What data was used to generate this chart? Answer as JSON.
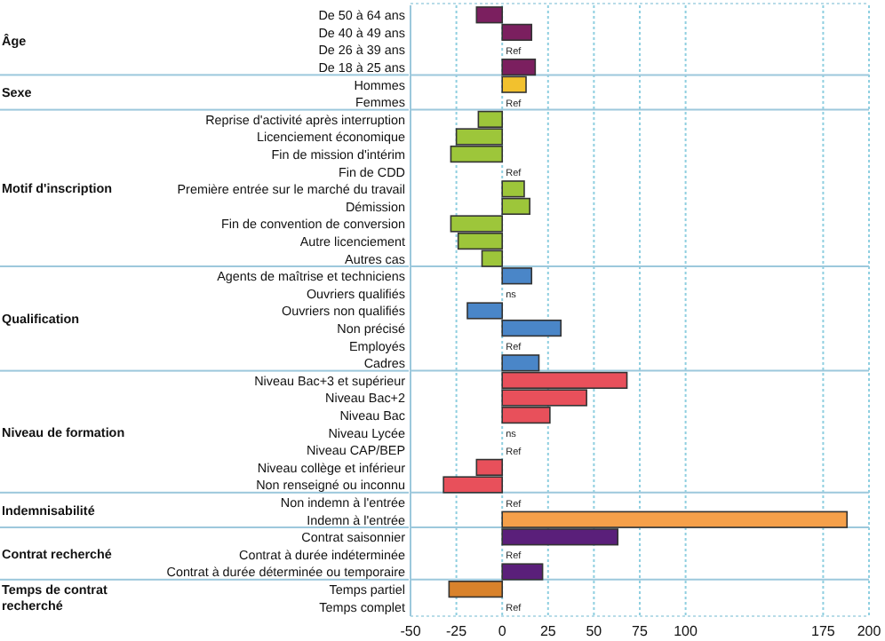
{
  "chart_data": {
    "type": "bar",
    "orientation": "horizontal",
    "categories": [
      "De 50 à 64 ans",
      "De 40 à 49 ans",
      "De 26 à 39 ans",
      "De 18 à 25 ans",
      "Hommes",
      "Femmes",
      "Reprise d'activité après interruption",
      "Licenciement économique",
      "Fin de mission d'intérim",
      "Fin de CDD",
      "Première entrée sur le marché du travail",
      "Démission",
      "Fin de convention de conversion",
      "Autre licenciement",
      "Autres cas",
      "Agents de maîtrise et techniciens",
      "Ouvriers qualifiés",
      "Ouvriers non qualifiés",
      "Non précisé",
      "Employés",
      "Cadres",
      "Niveau Bac+3 et supérieur",
      "Niveau Bac+2",
      "Niveau Bac",
      "Niveau Lycée",
      "Niveau CAP/BEP",
      "Niveau collège et inférieur",
      "Non renseigné ou inconnu",
      "Non indemn à l'entrée",
      "Indemn à l'entrée",
      "Contrat saisonnier",
      "Contrat à durée indéterminée",
      "Contrat à durée déterminée ou temporaire",
      "Temps partiel",
      "Temps complet"
    ],
    "series": [
      {
        "color": "#7b1f5f",
        "values": [
          -14,
          16,
          null,
          18,
          null,
          null,
          null,
          null,
          null,
          null,
          null,
          null,
          null,
          null,
          null,
          null,
          null,
          null,
          null,
          null,
          null,
          null,
          null,
          null,
          null,
          null,
          null,
          null,
          null,
          null,
          null,
          null,
          null,
          null,
          null
        ],
        "value_labels": [
          null,
          null,
          "Ref",
          null,
          null,
          null,
          null,
          null,
          null,
          null,
          null,
          null,
          null,
          null,
          null,
          null,
          null,
          null,
          null,
          null,
          null,
          null,
          null,
          null,
          null,
          null,
          null,
          null,
          null,
          null,
          null,
          null,
          null,
          null,
          null
        ]
      },
      {
        "color": "#f2c12e",
        "values": [
          null,
          null,
          null,
          null,
          13,
          null,
          null,
          null,
          null,
          null,
          null,
          null,
          null,
          null,
          null,
          null,
          null,
          null,
          null,
          null,
          null,
          null,
          null,
          null,
          null,
          null,
          null,
          null,
          null,
          null,
          null,
          null,
          null,
          null,
          null
        ],
        "value_labels": [
          null,
          null,
          null,
          null,
          null,
          "Ref",
          null,
          null,
          null,
          null,
          null,
          null,
          null,
          null,
          null,
          null,
          null,
          null,
          null,
          null,
          null,
          null,
          null,
          null,
          null,
          null,
          null,
          null,
          null,
          null,
          null,
          null,
          null,
          null,
          null
        ]
      },
      {
        "color": "#9dc63a",
        "values": [
          null,
          null,
          null,
          null,
          null,
          null,
          -13,
          -25,
          -28,
          null,
          12,
          15,
          -28,
          -24,
          -11,
          null,
          null,
          null,
          null,
          null,
          null,
          null,
          null,
          null,
          null,
          null,
          null,
          null,
          null,
          null,
          null,
          null,
          null,
          null,
          null
        ],
        "value_labels": [
          null,
          null,
          null,
          null,
          null,
          null,
          null,
          null,
          null,
          "Ref",
          null,
          null,
          null,
          null,
          null,
          null,
          null,
          null,
          null,
          null,
          null,
          null,
          null,
          null,
          null,
          null,
          null,
          null,
          null,
          null,
          null,
          null,
          null,
          null,
          null
        ]
      },
      {
        "color": "#4a86c8",
        "values": [
          null,
          null,
          null,
          null,
          null,
          null,
          null,
          null,
          null,
          null,
          null,
          null,
          null,
          null,
          null,
          16,
          null,
          -19,
          32,
          null,
          20,
          null,
          null,
          null,
          null,
          null,
          null,
          null,
          null,
          null,
          null,
          null,
          null,
          null,
          null
        ],
        "value_labels": [
          null,
          null,
          null,
          null,
          null,
          null,
          null,
          null,
          null,
          null,
          null,
          null,
          null,
          null,
          null,
          null,
          "ns",
          null,
          null,
          "Ref",
          null,
          null,
          null,
          null,
          null,
          null,
          null,
          null,
          null,
          null,
          null,
          null,
          null,
          null,
          null
        ]
      },
      {
        "color": "#e8505b",
        "values": [
          null,
          null,
          null,
          null,
          null,
          null,
          null,
          null,
          null,
          null,
          null,
          null,
          null,
          null,
          null,
          null,
          null,
          null,
          null,
          null,
          null,
          68,
          46,
          26,
          null,
          null,
          -14,
          -32,
          null,
          null,
          null,
          null,
          null,
          null,
          null
        ],
        "value_labels": [
          null,
          null,
          null,
          null,
          null,
          null,
          null,
          null,
          null,
          null,
          null,
          null,
          null,
          null,
          null,
          null,
          null,
          null,
          null,
          null,
          null,
          null,
          null,
          null,
          "ns",
          "Ref",
          null,
          null,
          null,
          null,
          null,
          null,
          null,
          null,
          null
        ]
      },
      {
        "color": "#f5a04a",
        "values": [
          null,
          null,
          null,
          null,
          null,
          null,
          null,
          null,
          null,
          null,
          null,
          null,
          null,
          null,
          null,
          null,
          null,
          null,
          null,
          null,
          null,
          null,
          null,
          null,
          null,
          null,
          null,
          null,
          null,
          188,
          null,
          null,
          null,
          null,
          null
        ],
        "value_labels": [
          null,
          null,
          null,
          null,
          null,
          null,
          null,
          null,
          null,
          null,
          null,
          null,
          null,
          null,
          null,
          null,
          null,
          null,
          null,
          null,
          null,
          null,
          null,
          null,
          null,
          null,
          null,
          null,
          "Ref",
          null,
          null,
          null,
          null,
          null,
          null
        ]
      },
      {
        "color": "#5a1f7a",
        "values": [
          null,
          null,
          null,
          null,
          null,
          null,
          null,
          null,
          null,
          null,
          null,
          null,
          null,
          null,
          null,
          null,
          null,
          null,
          null,
          null,
          null,
          null,
          null,
          null,
          null,
          null,
          null,
          null,
          null,
          null,
          63,
          null,
          22,
          null,
          null
        ],
        "value_labels": [
          null,
          null,
          null,
          null,
          null,
          null,
          null,
          null,
          null,
          null,
          null,
          null,
          null,
          null,
          null,
          null,
          null,
          null,
          null,
          null,
          null,
          null,
          null,
          null,
          null,
          null,
          null,
          null,
          null,
          null,
          null,
          "Ref",
          null,
          null,
          null
        ]
      },
      {
        "color": "#d9822b",
        "values": [
          null,
          null,
          null,
          null,
          null,
          null,
          null,
          null,
          null,
          null,
          null,
          null,
          null,
          null,
          null,
          null,
          null,
          null,
          null,
          null,
          null,
          null,
          null,
          null,
          null,
          null,
          null,
          null,
          null,
          null,
          null,
          null,
          null,
          -29,
          null
        ],
        "value_labels": [
          null,
          null,
          null,
          null,
          null,
          null,
          null,
          null,
          null,
          null,
          null,
          null,
          null,
          null,
          null,
          null,
          null,
          null,
          null,
          null,
          null,
          null,
          null,
          null,
          null,
          null,
          null,
          null,
          null,
          null,
          null,
          null,
          null,
          null,
          "Ref"
        ]
      }
    ],
    "annotations": [
      "Âge",
      "Sexe",
      "Motif d'inscription",
      "Qualification",
      "Niveau de formation",
      "Indemnisabilité",
      "Contrat recherché",
      "Temps de contrat recherché"
    ],
    "xlim": [
      -50,
      200
    ],
    "xticks": [
      -50,
      -25,
      0,
      25,
      50,
      75,
      100,
      175,
      200
    ],
    "grid": "x",
    "legend": false
  }
}
